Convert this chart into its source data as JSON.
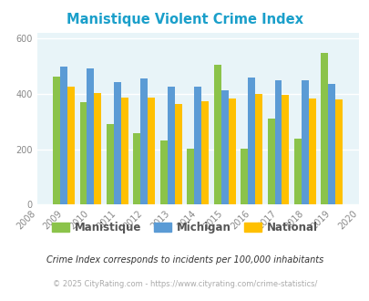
{
  "title": "Manistique Violent Crime Index",
  "years": [
    2009,
    2010,
    2011,
    2012,
    2013,
    2014,
    2015,
    2016,
    2017,
    2018,
    2019
  ],
  "manistique": [
    463,
    370,
    290,
    258,
    232,
    203,
    507,
    203,
    310,
    240,
    550
  ],
  "michigan": [
    500,
    493,
    443,
    455,
    428,
    428,
    413,
    460,
    450,
    448,
    435
  ],
  "national": [
    427,
    405,
    388,
    388,
    365,
    375,
    383,
    400,
    397,
    383,
    379
  ],
  "bar_width": 0.27,
  "xlim": [
    2008,
    2020
  ],
  "ylim": [
    0,
    620
  ],
  "yticks": [
    0,
    200,
    400,
    600
  ],
  "color_manistique": "#8bc34a",
  "color_michigan": "#5b9bd5",
  "color_national": "#ffc000",
  "bg_color": "#e8f4f8",
  "title_color": "#1a9fca",
  "legend_label_color": "#555555",
  "subtitle": "Crime Index corresponds to incidents per 100,000 inhabitants",
  "footer": "© 2025 CityRating.com - https://www.cityrating.com/crime-statistics/",
  "grid_color": "#ffffff",
  "axis_label_color": "#888888"
}
